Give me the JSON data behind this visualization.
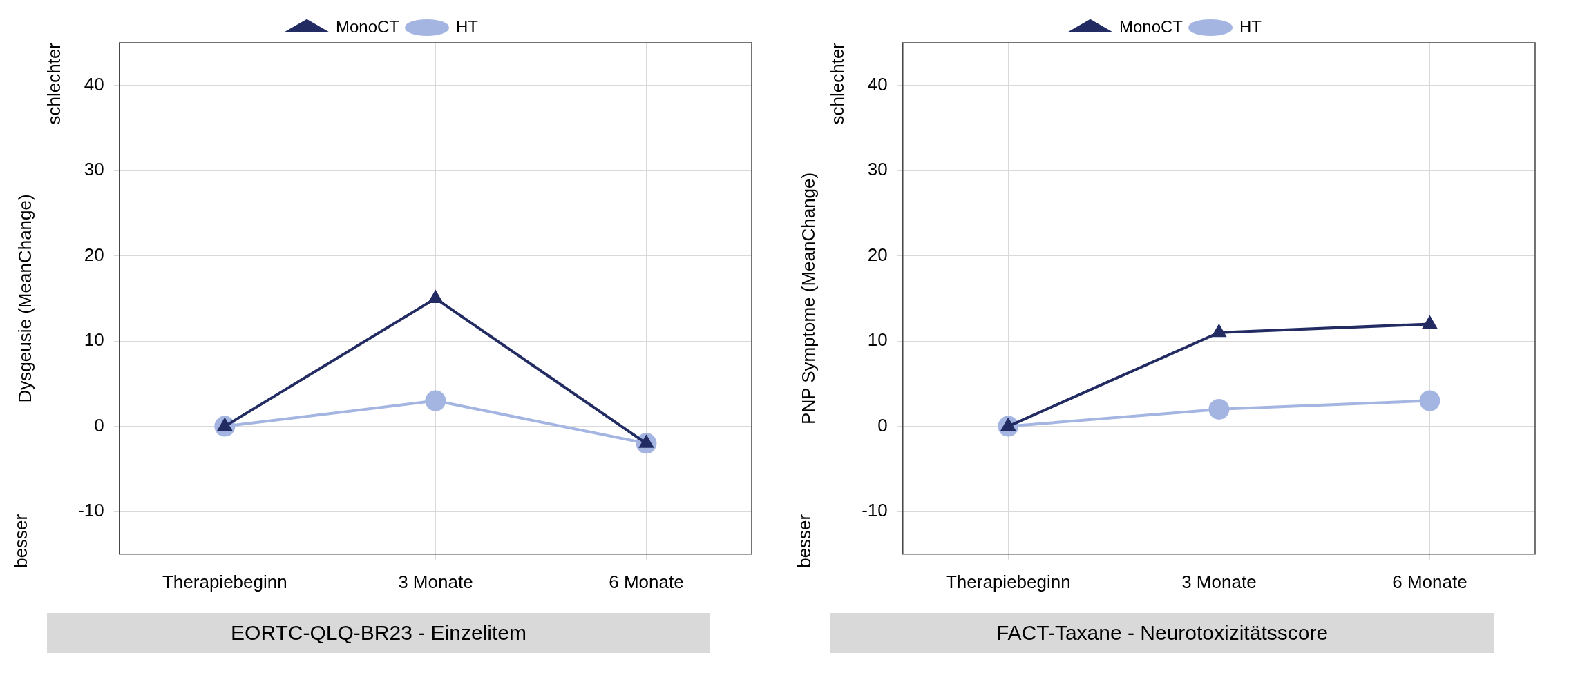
{
  "chart_data": [
    {
      "type": "line",
      "title": "EORTC-QLQ-BR23 - Einzelitem",
      "ylabel": "Dysgeusie (MeanChange)",
      "annotations": [
        "schlechter",
        "besser"
      ],
      "categories": [
        "Therapiebeginn",
        "3 Monate",
        "6 Monate"
      ],
      "series": [
        {
          "name": "MonoCT",
          "color": "#222c63",
          "marker": "triangle",
          "values": [
            0,
            15,
            -2
          ]
        },
        {
          "name": "HT",
          "color": "#a4b5e2",
          "marker": "circle",
          "values": [
            0,
            3,
            -2
          ]
        }
      ],
      "ylim": [
        -15,
        45
      ],
      "yticks": [
        -10,
        0,
        10,
        20,
        30,
        40
      ],
      "grid": true,
      "legend": "top",
      "line_style": "solid"
    },
    {
      "type": "line",
      "title": "FACT-Taxane - Neurotoxizitätsscore",
      "ylabel": "PNP Symptome (MeanChange)",
      "annotations": [
        "schlechter",
        "besser"
      ],
      "categories": [
        "Therapiebeginn",
        "3 Monate",
        "6 Monate"
      ],
      "series": [
        {
          "name": "MonoCT",
          "color": "#222c63",
          "marker": "triangle",
          "values": [
            0,
            11,
            12
          ]
        },
        {
          "name": "HT",
          "color": "#a4b5e2",
          "marker": "circle",
          "values": [
            0,
            2,
            3
          ]
        }
      ],
      "ylim": [
        -15,
        45
      ],
      "yticks": [
        -10,
        0,
        10,
        20,
        30,
        40
      ],
      "grid": true,
      "legend": "top",
      "line_style": "solid"
    }
  ]
}
